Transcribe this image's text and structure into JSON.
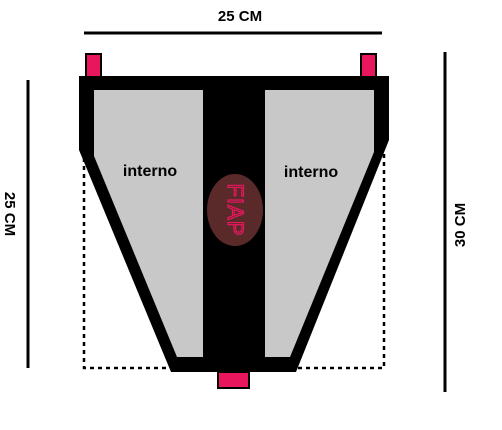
{
  "dimensions": {
    "top_width": "25 CM",
    "left_height": "25 CM",
    "right_height": "30 CM"
  },
  "panels": {
    "left_label": "interno",
    "right_label": "interno"
  },
  "logo": {
    "text": "FIAP",
    "color": "#e8175d",
    "icon": "fiap-logo"
  },
  "colors": {
    "frame": "#000000",
    "panel_fill": "#c8c8c8",
    "tab_pink": "#e8175d",
    "logo_oval": "#5a2a2a"
  }
}
